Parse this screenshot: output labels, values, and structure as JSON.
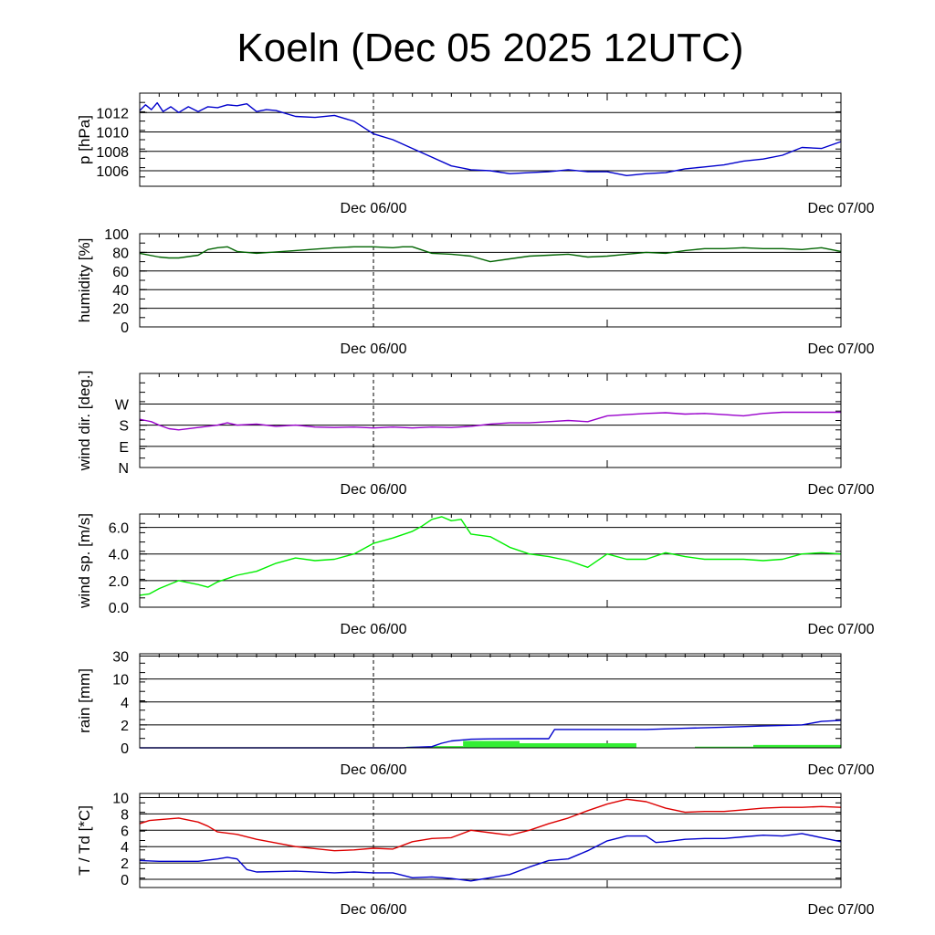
{
  "title": "Koeln (Dec 05 2025 12UTC)",
  "x_axis": {
    "ticks": [
      "Dec 06/00",
      "Dec 07/00"
    ],
    "dashed_line_at": "Dec 06/00",
    "range_hours": [
      0,
      36
    ],
    "tick_hours": [
      12,
      36
    ],
    "minor_tick_hours": [
      24
    ]
  },
  "colors": {
    "pressure": "#0000cc",
    "humidity": "#006400",
    "wind_dir": "#9900cc",
    "wind_speed": "#00ee00",
    "rain_bar": "#33ee33",
    "rain_cum": "#0000cc",
    "temperature": "#dd0000",
    "dewpoint": "#0000cc"
  },
  "chart_data": [
    {
      "type": "line",
      "name": "pressure",
      "ylabel": "p [hPa]",
      "ylim": [
        1004.4,
        1014.0
      ],
      "yticks": [
        1006,
        1008,
        1010,
        1012
      ],
      "ytick_labels": [
        "1006",
        "1008",
        "1010",
        "1012"
      ],
      "series": [
        {
          "name": "p",
          "color_key": "pressure",
          "x": [
            0,
            0.3,
            0.6,
            0.9,
            1.2,
            1.6,
            2,
            2.5,
            3,
            3.5,
            4,
            4.5,
            5,
            5.5,
            6,
            6.5,
            7,
            8,
            9,
            10,
            11,
            12,
            13,
            14,
            15,
            16,
            17,
            18,
            19,
            20,
            21,
            22,
            23,
            24,
            25,
            26,
            27,
            28,
            29,
            30,
            31,
            32,
            33,
            34,
            35,
            36
          ],
          "values": [
            1012.2,
            1012.8,
            1012.3,
            1013.0,
            1012.1,
            1012.6,
            1012.0,
            1012.6,
            1012.1,
            1012.6,
            1012.5,
            1012.8,
            1012.7,
            1012.9,
            1012.1,
            1012.3,
            1012.2,
            1011.6,
            1011.5,
            1011.7,
            1011.1,
            1009.8,
            1009.2,
            1008.3,
            1007.4,
            1006.5,
            1006.1,
            1006.0,
            1005.7,
            1005.8,
            1005.9,
            1006.1,
            1005.9,
            1005.9,
            1005.5,
            1005.7,
            1005.8,
            1006.2,
            1006.4,
            1006.6,
            1007.0,
            1007.2,
            1007.6,
            1008.4,
            1008.3,
            1009.0
          ]
        }
      ]
    },
    {
      "type": "line",
      "name": "humidity",
      "ylabel": "humidity [%]",
      "ylim": [
        0,
        100
      ],
      "yticks": [
        0,
        20,
        40,
        60,
        80,
        100
      ],
      "ytick_labels": [
        "0",
        "20",
        "40",
        "60",
        "80",
        "100"
      ],
      "series": [
        {
          "name": "rh",
          "color_key": "humidity",
          "x": [
            0,
            1,
            1.5,
            2,
            3,
            3.5,
            4,
            4.5,
            5,
            6,
            8,
            10,
            11,
            12,
            13,
            13.5,
            14,
            15,
            16,
            17,
            18,
            19,
            20,
            21,
            22,
            23,
            24,
            25,
            26,
            27,
            28,
            29,
            30,
            31,
            32,
            33,
            34,
            35,
            36
          ],
          "values": [
            79,
            75,
            74,
            74,
            77,
            83,
            85,
            86,
            81,
            79,
            82,
            85,
            86,
            86,
            85,
            86,
            86,
            79,
            78,
            76,
            70,
            73,
            76,
            77,
            78,
            75,
            76,
            78,
            80,
            79,
            82,
            84,
            84,
            85,
            84,
            84,
            83,
            85,
            81
          ]
        }
      ]
    },
    {
      "type": "line",
      "name": "wind_direction",
      "ylabel": "wind dir. [deg.]",
      "ylim": [
        0,
        400
      ],
      "yticks": [
        0,
        90,
        180,
        270
      ],
      "ytick_labels": [
        "N",
        "E",
        "S",
        "W"
      ],
      "series": [
        {
          "name": "dd",
          "color_key": "wind_dir",
          "x": [
            0,
            0.3,
            0.6,
            1,
            1.5,
            2,
            3,
            4,
            4.5,
            5,
            6,
            7,
            8,
            9,
            10,
            11,
            12,
            13,
            14,
            15,
            16,
            17,
            18,
            19,
            20,
            21,
            22,
            23,
            24,
            25,
            26,
            27,
            28,
            29,
            30,
            31,
            32,
            33,
            34,
            35,
            36
          ],
          "values": [
            205,
            200,
            195,
            180,
            165,
            160,
            170,
            180,
            190,
            180,
            185,
            175,
            180,
            172,
            170,
            172,
            168,
            172,
            168,
            172,
            170,
            175,
            185,
            190,
            190,
            195,
            200,
            195,
            220,
            225,
            230,
            233,
            227,
            230,
            225,
            220,
            230,
            235,
            235,
            235,
            235
          ]
        }
      ]
    },
    {
      "type": "line",
      "name": "wind_speed",
      "ylabel": "wind sp. [m/s]",
      "ylim": [
        0,
        7
      ],
      "yticks": [
        0,
        2,
        4,
        6
      ],
      "ytick_labels": [
        "0.0",
        "2.0",
        "4.0",
        "6.0"
      ],
      "series": [
        {
          "name": "ff",
          "color_key": "wind_speed",
          "x": [
            0,
            0.5,
            1,
            2,
            3,
            3.5,
            4,
            5,
            6,
            7,
            8,
            9,
            10,
            11,
            12,
            13,
            14,
            14.5,
            15,
            15.5,
            16,
            16.5,
            17,
            18,
            19,
            20,
            21,
            22,
            23,
            24,
            25,
            26,
            27,
            28,
            29,
            30,
            31,
            32,
            33,
            34,
            35,
            36
          ],
          "values": [
            0.9,
            1.0,
            1.4,
            2.0,
            1.7,
            1.5,
            1.9,
            2.4,
            2.7,
            3.3,
            3.7,
            3.5,
            3.6,
            4.0,
            4.8,
            5.2,
            5.7,
            6.1,
            6.6,
            6.8,
            6.5,
            6.6,
            5.5,
            5.3,
            4.5,
            4.0,
            3.8,
            3.5,
            3.0,
            4.0,
            3.6,
            3.6,
            4.1,
            3.8,
            3.6,
            3.6,
            3.6,
            3.5,
            3.6,
            4.0,
            4.1,
            4.0
          ]
        }
      ]
    },
    {
      "type": "bar",
      "name": "rain",
      "ylabel": "rain [mm]",
      "ylim": [
        0,
        30
      ],
      "yticks": [
        0,
        2,
        4,
        10,
        30
      ],
      "ytick_labels": [
        "0",
        "2",
        "4",
        "10",
        "30"
      ],
      "bars": [
        {
          "start": 13.7,
          "end": 15.0,
          "value": 0.1
        },
        {
          "start": 15.0,
          "end": 16.6,
          "value": 0.15
        },
        {
          "start": 16.6,
          "end": 19.5,
          "value": 0.6
        },
        {
          "start": 19.5,
          "end": 25.5,
          "value": 0.4
        },
        {
          "start": 28.5,
          "end": 31.5,
          "value": 0.1
        },
        {
          "start": 31.5,
          "end": 36.0,
          "value": 0.25
        }
      ],
      "series": [
        {
          "name": "cumulative",
          "color_key": "rain_cum",
          "x": [
            0,
            13.5,
            14,
            15,
            15.5,
            16,
            17,
            18,
            20,
            21,
            21.3,
            22,
            24,
            26,
            28,
            30,
            32,
            34,
            35,
            36
          ],
          "values": [
            0,
            0,
            0.05,
            0.1,
            0.4,
            0.6,
            0.75,
            0.78,
            0.8,
            0.8,
            1.6,
            1.6,
            1.6,
            1.6,
            1.7,
            1.8,
            1.9,
            2.0,
            2.3,
            2.4
          ]
        }
      ]
    },
    {
      "type": "line",
      "name": "temperature",
      "ylabel": "T / Td [*C]",
      "ylim": [
        -1.0,
        10.5
      ],
      "yticks": [
        0,
        2,
        4,
        6,
        8,
        10
      ],
      "ytick_labels": [
        "0",
        "2",
        "4",
        "6",
        "8",
        "10"
      ],
      "series": [
        {
          "name": "T",
          "color_key": "temperature",
          "x": [
            0,
            0.5,
            1,
            2,
            3,
            3.5,
            4,
            5,
            6,
            8,
            10,
            11,
            12,
            13,
            14,
            15,
            16,
            17,
            18,
            19,
            20,
            21,
            22,
            23,
            24,
            25,
            26,
            27,
            28,
            29,
            30,
            31,
            32,
            33,
            34,
            35,
            36
          ],
          "values": [
            6.8,
            7.2,
            7.3,
            7.5,
            7.0,
            6.5,
            5.8,
            5.5,
            4.9,
            4.0,
            3.5,
            3.6,
            3.8,
            3.7,
            4.6,
            5.0,
            5.1,
            6.0,
            5.7,
            5.4,
            6.0,
            6.8,
            7.5,
            8.4,
            9.2,
            9.8,
            9.5,
            8.7,
            8.2,
            8.3,
            8.3,
            8.5,
            8.7,
            8.8,
            8.8,
            8.9,
            8.8
          ]
        },
        {
          "name": "Td",
          "color_key": "dewpoint",
          "x": [
            0,
            1,
            2,
            3,
            4,
            4.5,
            5,
            5.5,
            6,
            8,
            10,
            11,
            12,
            13,
            14,
            15,
            16,
            17,
            17.5,
            18,
            19,
            20,
            21,
            22,
            23,
            24,
            25,
            26,
            26.5,
            27,
            28,
            29,
            30,
            31,
            32,
            33,
            34,
            35,
            36
          ],
          "values": [
            2.3,
            2.2,
            2.2,
            2.2,
            2.5,
            2.7,
            2.5,
            1.2,
            0.9,
            1.0,
            0.8,
            0.9,
            0.8,
            0.8,
            0.2,
            0.3,
            0.1,
            -0.2,
            0.0,
            0.2,
            0.6,
            1.5,
            2.3,
            2.5,
            3.5,
            4.7,
            5.3,
            5.3,
            4.5,
            4.6,
            4.9,
            5.0,
            5.0,
            5.2,
            5.4,
            5.3,
            5.6,
            5.1,
            4.6
          ]
        }
      ]
    }
  ]
}
